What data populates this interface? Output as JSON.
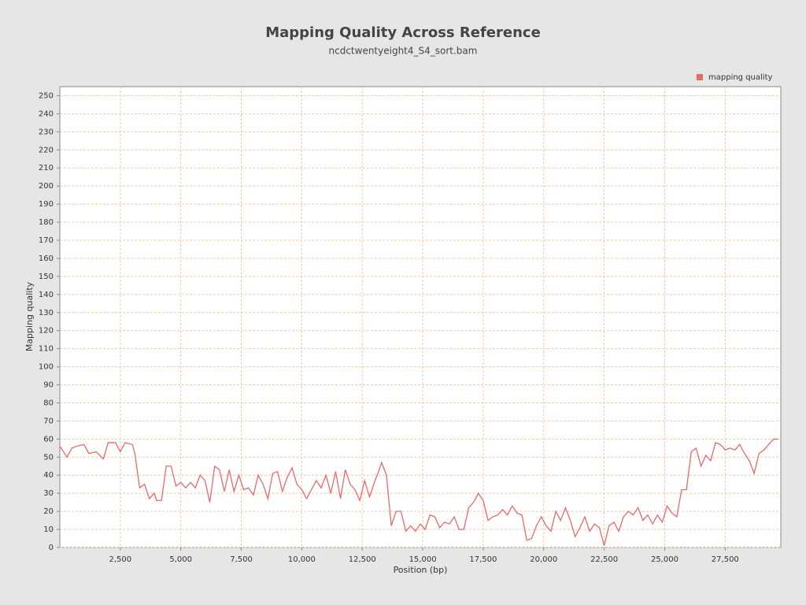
{
  "chart_data": {
    "type": "line",
    "title": "Mapping Quality Across Reference",
    "subtitle": "ncdctwentyeight4_S4_sort.bam",
    "x_label": "Position (bp)",
    "y_label": "Mapping quality",
    "legend": "top-right",
    "grid": true,
    "xlim": [
      0,
      29800
    ],
    "ylim": [
      0,
      255
    ],
    "xticks": [
      {
        "value": 2500,
        "label": "2,500"
      },
      {
        "value": 5000,
        "label": "5,000"
      },
      {
        "value": 7500,
        "label": "7,500"
      },
      {
        "value": 10000,
        "label": "10,000"
      },
      {
        "value": 12500,
        "label": "12,500"
      },
      {
        "value": 15000,
        "label": "15,000"
      },
      {
        "value": 17500,
        "label": "17,500"
      },
      {
        "value": 20000,
        "label": "20,000"
      },
      {
        "value": 22500,
        "label": "22,500"
      },
      {
        "value": 25000,
        "label": "25,000"
      },
      {
        "value": 27500,
        "label": "27,500"
      }
    ],
    "yticks": [
      0,
      10,
      20,
      30,
      40,
      50,
      60,
      70,
      80,
      90,
      100,
      110,
      120,
      130,
      140,
      150,
      160,
      170,
      180,
      190,
      200,
      210,
      220,
      230,
      240,
      250
    ],
    "x": [
      0,
      200,
      300,
      500,
      700,
      1000,
      1200,
      1500,
      1800,
      2000,
      2300,
      2500,
      2700,
      3000,
      3100,
      3300,
      3500,
      3700,
      3900,
      4000,
      4200,
      4400,
      4600,
      4800,
      5000,
      5200,
      5400,
      5600,
      5800,
      6000,
      6200,
      6400,
      6600,
      6800,
      7000,
      7200,
      7400,
      7600,
      7800,
      8000,
      8200,
      8400,
      8600,
      8800,
      9000,
      9200,
      9400,
      9600,
      9800,
      10000,
      10200,
      10400,
      10600,
      10800,
      11000,
      11200,
      11400,
      11600,
      11800,
      12000,
      12200,
      12400,
      12600,
      12800,
      13000,
      13200,
      13300,
      13500,
      13700,
      13900,
      14100,
      14300,
      14500,
      14700,
      14900,
      15100,
      15300,
      15500,
      15700,
      15900,
      16100,
      16300,
      16500,
      16700,
      16900,
      17100,
      17300,
      17500,
      17700,
      17900,
      18100,
      18300,
      18500,
      18700,
      18900,
      19100,
      19300,
      19500,
      19700,
      19900,
      20100,
      20300,
      20500,
      20700,
      20900,
      21100,
      21300,
      21500,
      21700,
      21900,
      22100,
      22300,
      22500,
      22700,
      22900,
      23100,
      23300,
      23500,
      23700,
      23900,
      24100,
      24300,
      24500,
      24700,
      24900,
      25100,
      25300,
      25500,
      25700,
      25900,
      26100,
      26300,
      26500,
      26700,
      26900,
      27100,
      27300,
      27500,
      27700,
      27900,
      28100,
      28300,
      28500,
      28700,
      28900,
      29100,
      29300,
      29500,
      29700
    ],
    "series": [
      {
        "name": "mapping quality",
        "color": "#e8696b",
        "values": [
          56,
          52,
          50,
          55,
          56,
          57,
          52,
          53,
          49,
          58,
          58,
          53,
          58,
          57,
          52,
          33,
          35,
          27,
          30,
          26,
          26,
          45,
          45,
          34,
          36,
          33,
          36,
          33,
          40,
          37,
          25,
          45,
          43,
          31,
          43,
          31,
          40,
          32,
          33,
          29,
          40,
          35,
          27,
          41,
          42,
          31,
          39,
          44,
          35,
          32,
          27,
          32,
          37,
          33,
          40,
          30,
          42,
          27,
          43,
          35,
          32,
          26,
          37,
          28,
          36,
          43,
          47,
          40,
          12,
          20,
          20,
          9,
          12,
          9,
          13,
          10,
          18,
          17,
          11,
          14,
          13,
          17,
          10,
          10,
          22,
          25,
          30,
          26,
          15,
          17,
          18,
          21,
          18,
          23,
          19,
          18,
          4,
          5,
          12,
          17,
          12,
          9,
          20,
          15,
          22,
          15,
          6,
          11,
          17,
          9,
          13,
          11,
          1,
          12,
          14,
          9,
          17,
          20,
          18,
          22,
          15,
          18,
          13,
          18,
          14,
          23,
          19,
          17,
          32,
          32,
          53,
          55,
          45,
          51,
          48,
          58,
          57,
          54,
          55,
          54,
          57,
          52,
          48,
          41,
          52,
          54,
          57,
          60,
          60
        ]
      }
    ]
  }
}
